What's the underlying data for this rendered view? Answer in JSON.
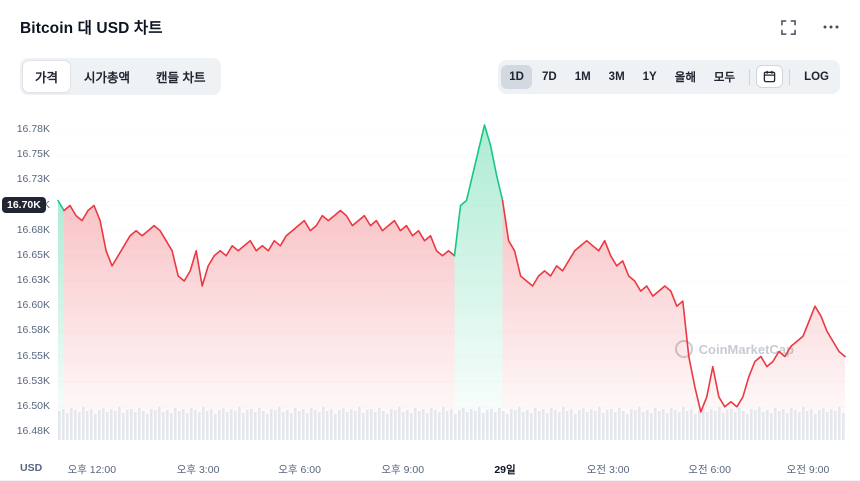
{
  "header": {
    "title": "Bitcoin 대 USD 차트"
  },
  "toolbar": {
    "tabs": [
      {
        "label": "가격",
        "name": "price",
        "selected": true
      },
      {
        "label": "시가총액",
        "name": "market-cap",
        "selected": false
      },
      {
        "label": "캔들 차트",
        "name": "candle-chart",
        "selected": false
      }
    ],
    "ranges": [
      {
        "label": "1D",
        "name": "1d",
        "selected": true
      },
      {
        "label": "7D",
        "name": "7d",
        "selected": false
      },
      {
        "label": "1M",
        "name": "1m",
        "selected": false
      },
      {
        "label": "3M",
        "name": "3m",
        "selected": false
      },
      {
        "label": "1Y",
        "name": "1y",
        "selected": false
      },
      {
        "label": "올해",
        "name": "ytd",
        "selected": false
      },
      {
        "label": "모두",
        "name": "all",
        "selected": false
      }
    ],
    "log_label": "LOG"
  },
  "chart": {
    "axis_badge": "16.70K",
    "currency_label": "USD",
    "watermark": "CoinMarketCap",
    "colors": {
      "red": "#ea3943",
      "green": "#16c784",
      "grid": "#edf0f4",
      "volume": "#e4e7ec",
      "badge_bg": "#222531",
      "axis_text": "#58667e"
    }
  },
  "chart_data": {
    "type": "line",
    "title": "Bitcoin 대 USD 차트",
    "xlabel": "",
    "ylabel": "USD",
    "unit": "K",
    "ylim": [
      16.475,
      16.775
    ],
    "open_price": 16.7,
    "y_ticks": [
      {
        "label": "16.78K",
        "value": 16.775
      },
      {
        "label": "16.75K",
        "value": 16.75
      },
      {
        "label": "16.73K",
        "value": 16.725
      },
      {
        "label": "16.70K",
        "value": 16.7
      },
      {
        "label": "16.68K",
        "value": 16.675
      },
      {
        "label": "16.65K",
        "value": 16.65
      },
      {
        "label": "16.63K",
        "value": 16.625
      },
      {
        "label": "16.60K",
        "value": 16.6
      },
      {
        "label": "16.58K",
        "value": 16.575
      },
      {
        "label": "16.55K",
        "value": 16.55
      },
      {
        "label": "16.53K",
        "value": 16.525
      },
      {
        "label": "16.50K",
        "value": 16.5
      },
      {
        "label": "16.48K",
        "value": 16.475
      }
    ],
    "x_labels": [
      {
        "label": "오후 12:00",
        "pos": 0.043,
        "strong": false
      },
      {
        "label": "오후 3:00",
        "pos": 0.178,
        "strong": false
      },
      {
        "label": "오후 6:00",
        "pos": 0.307,
        "strong": false
      },
      {
        "label": "오후 9:00",
        "pos": 0.438,
        "strong": false
      },
      {
        "label": "29일",
        "pos": 0.568,
        "strong": true
      },
      {
        "label": "오전 3:00",
        "pos": 0.699,
        "strong": false
      },
      {
        "label": "오전 6:00",
        "pos": 0.828,
        "strong": false
      },
      {
        "label": "오전 9:00",
        "pos": 0.953,
        "strong": false
      }
    ],
    "values": [
      16.705,
      16.695,
      16.7,
      16.69,
      16.685,
      16.695,
      16.7,
      16.685,
      16.655,
      16.64,
      16.65,
      16.66,
      16.67,
      16.675,
      16.67,
      16.675,
      16.68,
      16.675,
      16.665,
      16.655,
      16.63,
      16.625,
      16.635,
      16.655,
      16.62,
      16.64,
      16.65,
      16.655,
      16.65,
      16.66,
      16.655,
      16.66,
      16.665,
      16.655,
      16.66,
      16.655,
      16.665,
      16.66,
      16.67,
      16.675,
      16.68,
      16.685,
      16.675,
      16.68,
      16.69,
      16.685,
      16.69,
      16.695,
      16.69,
      16.68,
      16.685,
      16.69,
      16.68,
      16.685,
      16.675,
      16.68,
      16.685,
      16.675,
      16.68,
      16.67,
      16.675,
      16.665,
      16.67,
      16.655,
      16.65,
      16.655,
      16.65,
      16.7,
      16.705,
      16.73,
      16.755,
      16.78,
      16.76,
      16.73,
      16.705,
      16.665,
      16.655,
      16.63,
      16.625,
      16.62,
      16.63,
      16.635,
      16.63,
      16.64,
      16.635,
      16.645,
      16.655,
      16.66,
      16.665,
      16.66,
      16.655,
      16.665,
      16.65,
      16.64,
      16.645,
      16.63,
      16.625,
      16.615,
      16.62,
      16.61,
      16.615,
      16.62,
      16.615,
      16.6,
      16.605,
      16.55,
      16.52,
      16.495,
      16.51,
      16.54,
      16.51,
      16.5,
      16.505,
      16.5,
      16.51,
      16.53,
      16.545,
      16.55,
      16.54,
      16.545,
      16.555,
      16.55,
      16.56,
      16.565,
      16.57,
      16.585,
      16.6,
      16.59,
      16.575,
      16.565,
      16.555,
      16.55
    ],
    "green_ranges": [
      [
        0,
        1
      ],
      [
        66,
        74
      ]
    ],
    "volume_heights": [
      29,
      31,
      27,
      32,
      30,
      28,
      33,
      29,
      31,
      26,
      30,
      32,
      28,
      31,
      29,
      33,
      27,
      30,
      31,
      28,
      32,
      29,
      26,
      31,
      30,
      33,
      28,
      30,
      27,
      32
    ]
  }
}
